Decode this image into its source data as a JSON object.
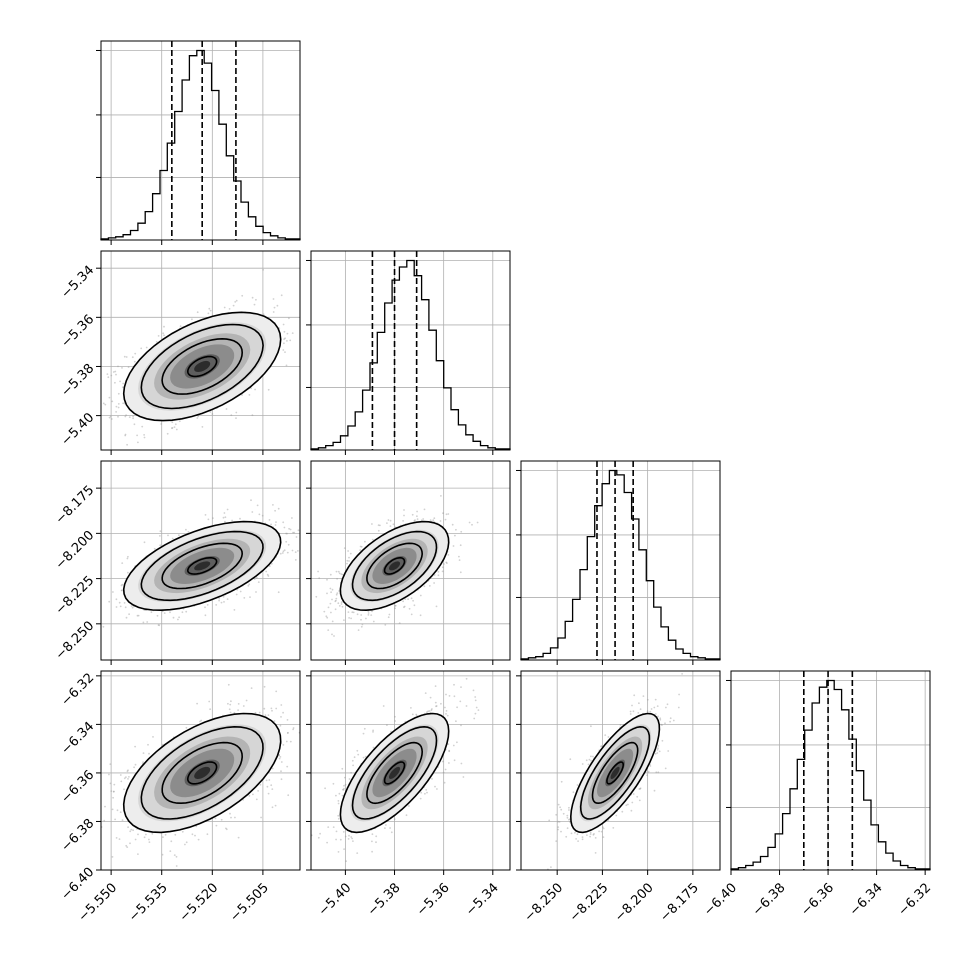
{
  "chart_data": {
    "type": "corner",
    "title": "",
    "grid": true,
    "parameters": [
      {
        "range": [
          -5.553,
          -5.494
        ],
        "ticks": [
          -5.55,
          -5.535,
          -5.52,
          -5.505
        ],
        "tick_labels": [
          "−5.550",
          "−5.535",
          "−5.520",
          "−5.505"
        ],
        "quantiles": [
          -5.532,
          -5.523,
          -5.513
        ]
      },
      {
        "range": [
          -5.414,
          -5.333
        ],
        "ticks": [
          -5.4,
          -5.38,
          -5.36,
          -5.34
        ],
        "tick_labels": [
          "−5.40",
          "−5.38",
          "−5.36",
          "−5.34"
        ],
        "quantiles": [
          -5.389,
          -5.38,
          -5.371
        ]
      },
      {
        "range": [
          -8.27,
          -8.16
        ],
        "ticks": [
          -8.25,
          -8.225,
          -8.2,
          -8.175
        ],
        "tick_labels": [
          "−8.250",
          "−8.225",
          "−8.200",
          "−8.175"
        ],
        "quantiles": [
          -8.228,
          -8.218,
          -8.208
        ]
      },
      {
        "range": [
          -6.4,
          -6.318
        ],
        "ticks": [
          -6.4,
          -6.38,
          -6.36,
          -6.34,
          -6.32
        ],
        "tick_labels": [
          "−6.40",
          "−6.38",
          "−6.36",
          "−6.34",
          "−6.32"
        ],
        "quantiles": [
          -6.37,
          -6.36,
          -6.35
        ]
      }
    ],
    "row_axis_ticks": [
      null,
      {
        "ticks": [
          -5.4,
          -5.38,
          -5.36,
          -5.34
        ],
        "tick_labels": [
          "−5.40",
          "−5.38",
          "−5.36",
          "−5.34"
        ]
      },
      {
        "ticks": [
          -8.25,
          -8.225,
          -8.2,
          -8.175
        ],
        "tick_labels": [
          "−8.250",
          "−8.225",
          "−8.200",
          "−8.175"
        ]
      },
      {
        "ticks": [
          -6.4,
          -6.38,
          -6.36,
          -6.34,
          -6.32
        ],
        "tick_labels": [
          "−6.40",
          "−6.38",
          "−6.36",
          "−6.34",
          "−6.32"
        ]
      }
    ],
    "histograms": [
      {
        "counts": [
          1,
          2,
          3,
          5,
          9,
          16,
          27,
          44,
          66,
          92,
          122,
          152,
          175,
          180,
          168,
          142,
          110,
          80,
          56,
          36,
          22,
          13,
          7,
          4,
          2,
          1,
          1
        ]
      },
      {
        "counts": [
          1,
          2,
          4,
          7,
          13,
          22,
          35,
          55,
          80,
          108,
          135,
          156,
          168,
          174,
          160,
          138,
          110,
          82,
          57,
          37,
          23,
          14,
          8,
          4,
          2,
          1,
          1
        ]
      },
      {
        "counts": [
          1,
          2,
          3,
          6,
          11,
          20,
          35,
          55,
          82,
          112,
          140,
          160,
          172,
          168,
          152,
          128,
          100,
          72,
          48,
          30,
          18,
          10,
          6,
          3,
          2,
          1,
          1
        ]
      },
      {
        "counts": [
          1,
          2,
          4,
          7,
          12,
          20,
          32,
          50,
          72,
          98,
          124,
          148,
          162,
          168,
          160,
          142,
          116,
          88,
          62,
          40,
          25,
          15,
          8,
          4,
          2,
          1,
          1
        ]
      }
    ],
    "correlations": {
      "1-0": 0.5,
      "2-0": 0.55,
      "2-1": 0.55,
      "3-0": 0.55,
      "3-1": 0.7,
      "3-2": 0.75
    }
  }
}
